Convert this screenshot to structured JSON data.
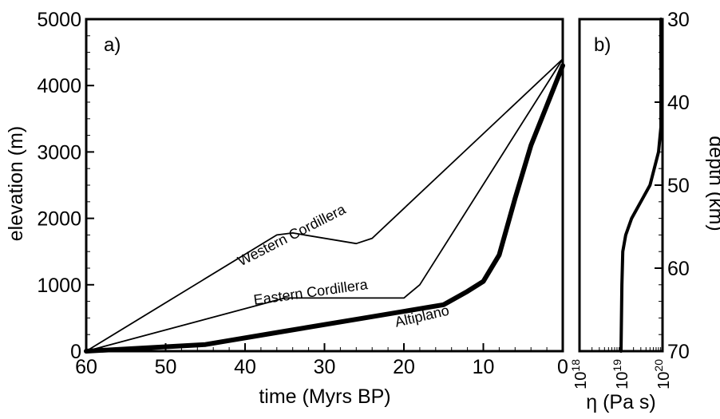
{
  "chart_data": [
    {
      "panel_label": "a)",
      "type": "line",
      "xlabel": "time (Myrs BP)",
      "ylabel": "elevation (m)",
      "xlim": [
        60,
        0
      ],
      "ylim": [
        0,
        5000
      ],
      "x_ticks": [
        "60",
        "50",
        "40",
        "30",
        "20",
        "10",
        "0"
      ],
      "y_ticks": [
        "0",
        "1000",
        "2000",
        "3000",
        "4000",
        "5000"
      ],
      "grid": false,
      "series": [
        {
          "name": "Western Cordillera",
          "line_weight": "thin",
          "x": [
            60,
            36,
            34,
            26,
            24,
            0
          ],
          "y": [
            0,
            1750,
            1780,
            1620,
            1700,
            4400
          ]
        },
        {
          "name": "Eastern Cordillera",
          "line_weight": "thin",
          "x": [
            60,
            35,
            20,
            18,
            0
          ],
          "y": [
            0,
            800,
            800,
            1000,
            4400
          ]
        },
        {
          "name": "Altiplano",
          "line_weight": "thick",
          "x": [
            60,
            45,
            35,
            25,
            15,
            12,
            10,
            8,
            6,
            4,
            2,
            0
          ],
          "y": [
            0,
            100,
            300,
            500,
            700,
            900,
            1050,
            1450,
            2300,
            3100,
            3700,
            4300
          ]
        }
      ]
    },
    {
      "panel_label": "b)",
      "type": "line",
      "xlabel": "η (Pa s)",
      "ylabel": "depth (km)",
      "x_scale": "log",
      "xlim": [
        1e+18,
        1e+20
      ],
      "ylim": [
        30,
        70
      ],
      "y_inverted": true,
      "x_ticks": [
        "10^18",
        "10^19",
        "10^20"
      ],
      "y_ticks": [
        "30",
        "40",
        "50",
        "60",
        "70"
      ],
      "series": [
        {
          "name": "",
          "x": [
            1.1e+20,
            1.1e+20,
            1e+20,
            8e+19,
            5e+19,
            3e+19,
            1.8e+19,
            1.3e+19,
            1.1e+19,
            1.05e+19,
            1e+19
          ],
          "y": [
            30,
            40,
            43,
            46,
            50,
            52,
            54,
            56,
            58,
            62,
            70
          ]
        }
      ]
    }
  ]
}
